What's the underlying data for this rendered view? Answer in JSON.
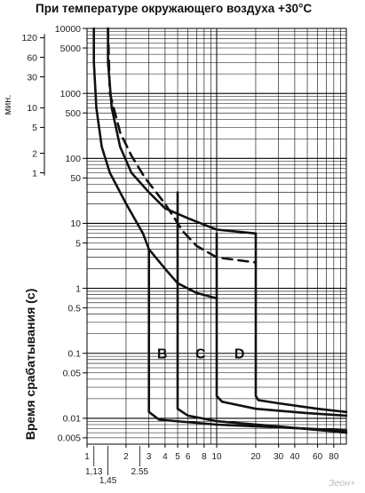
{
  "chart_data": {
    "type": "line",
    "title": "При температуре окружающего воздуха  +30°C",
    "ylabel": "Время срабатывания (с)",
    "xlabel": "",
    "x_scale": "log",
    "y_scale": "log",
    "xlim": [
      1,
      100
    ],
    "ylim": [
      0.004,
      10000
    ],
    "grid": true,
    "legend": "none",
    "y_ticks": [
      "10000",
      "5000",
      "1000",
      "500",
      "100",
      "50",
      "10",
      "5",
      "1",
      "0.5",
      "0.1",
      "0.05",
      "0.01",
      "0.005"
    ],
    "x_ticks_top": [
      "1",
      "2",
      "3",
      "4",
      "5",
      "6",
      "8",
      "10",
      "20",
      "30",
      "40",
      "60",
      "80"
    ],
    "x_ticks_bottom": [
      "1,13",
      "1,45",
      "2.55"
    ],
    "minutes_axis": {
      "unit_label": "мин.",
      "ticks": [
        "120",
        "60",
        "30",
        "10",
        "5",
        "2",
        "1"
      ]
    },
    "zone_labels": [
      "B",
      "C",
      "D"
    ],
    "series": [
      {
        "style": "solid",
        "points": [
          [
            1.13,
            10000
          ],
          [
            1.13,
            3000
          ],
          [
            1.18,
            600
          ],
          [
            1.3,
            150
          ],
          [
            1.5,
            60
          ],
          [
            2,
            20
          ],
          [
            2.7,
            7
          ],
          [
            3,
            4
          ]
        ]
      },
      {
        "style": "solid",
        "points": [
          [
            3,
            4
          ],
          [
            3,
            0.0125
          ],
          [
            3.6,
            0.0095
          ],
          [
            10,
            0.008
          ],
          [
            100,
            0.0065
          ]
        ]
      },
      {
        "style": "solid",
        "points": [
          [
            1.45,
            10000
          ],
          [
            1.45,
            3000
          ],
          [
            1.55,
            600
          ],
          [
            1.8,
            150
          ],
          [
            2.2,
            60
          ],
          [
            3,
            30
          ],
          [
            4,
            17
          ],
          [
            6,
            12
          ],
          [
            10,
            8
          ],
          [
            20,
            7
          ]
        ]
      },
      {
        "style": "solid",
        "points": [
          [
            3,
            4
          ],
          [
            4,
            2
          ],
          [
            5,
            1.2
          ],
          [
            7,
            0.85
          ],
          [
            10,
            0.7
          ]
        ]
      },
      {
        "style": "solid",
        "points": [
          [
            5,
            30
          ],
          [
            5,
            0.014
          ],
          [
            6,
            0.011
          ],
          [
            10,
            0.009
          ],
          [
            30,
            0.0075
          ],
          [
            100,
            0.006
          ]
        ]
      },
      {
        "style": "solid",
        "points": [
          [
            10,
            7
          ],
          [
            10,
            0.022
          ],
          [
            11,
            0.018
          ],
          [
            20,
            0.014
          ],
          [
            50,
            0.012
          ],
          [
            100,
            0.011
          ]
        ]
      },
      {
        "style": "solid",
        "points": [
          [
            20,
            7
          ],
          [
            20,
            0.022
          ],
          [
            21,
            0.019
          ],
          [
            30,
            0.017
          ],
          [
            60,
            0.014
          ],
          [
            100,
            0.0125
          ]
        ]
      },
      {
        "style": "dashed",
        "points": [
          [
            1.45,
            10000
          ],
          [
            1.5,
            1000
          ],
          [
            1.8,
            250
          ],
          [
            2.2,
            110
          ],
          [
            2.8,
            50
          ],
          [
            4,
            20
          ],
          [
            5.5,
            7.5
          ],
          [
            7,
            4.5
          ],
          [
            10,
            3
          ],
          [
            20,
            2.5
          ]
        ]
      }
    ]
  },
  "watermark": "Зеон+"
}
